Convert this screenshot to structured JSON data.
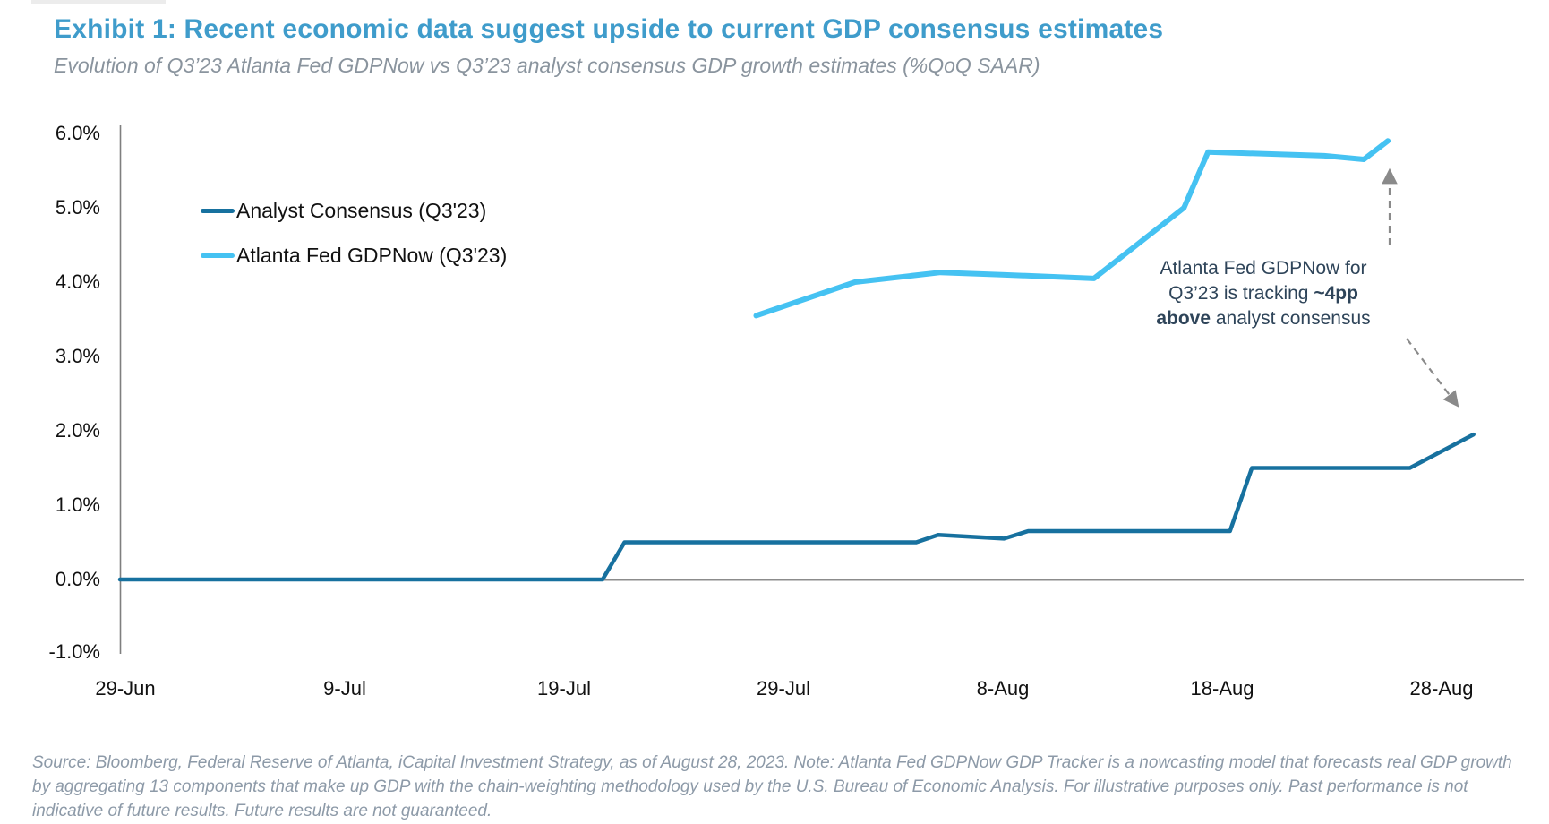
{
  "header": {
    "title": "Exhibit 1: Recent economic data suggest upside to current GDP consensus estimates",
    "title_color": "#3F9CCB",
    "subtitle": "Evolution of Q3’23 Atlanta Fed GDPNow vs Q3’23 analyst consensus GDP growth estimates (%QoQ SAAR)",
    "subtitle_color": "#8A949E"
  },
  "legend": {
    "items": [
      {
        "label": "Analyst Consensus (Q3'23)",
        "color": "#17719F"
      },
      {
        "label": "Atlanta Fed GDPNow (Q3'23)",
        "color": "#45C2F2"
      }
    ]
  },
  "annotation": {
    "line1": "Atlanta Fed GDPNow for",
    "line2_normal": "Q3’23 is tracking ",
    "line2_bold": "~4pp",
    "line3_bold": "above",
    "line3_normal": " analyst consensus",
    "color": "#2E4459",
    "arrow_color": "#8A8A8A"
  },
  "chart_data": {
    "type": "line",
    "title": "Exhibit 1: Recent economic data suggest upside to current GDP consensus estimates",
    "subtitle": "Evolution of Q3’23 Atlanta Fed GDPNow vs Q3’23 analyst consensus GDP growth estimates (%QoQ SAAR)",
    "unit": "%QoQ SAAR",
    "grid": "none",
    "legend_position": "inside-top-left",
    "x_axis": {
      "tick_labels": [
        "29-Jun",
        "9-Jul",
        "19-Jul",
        "29-Jul",
        "8-Aug",
        "18-Aug",
        "28-Aug"
      ],
      "tick_days": [
        0,
        10,
        20,
        30,
        40,
        50,
        60
      ]
    },
    "y_axis": {
      "tick_labels": [
        "6.0%",
        "5.0%",
        "4.0%",
        "3.0%",
        "2.0%",
        "1.0%",
        "0.0%",
        "-1.0%"
      ],
      "tick_values": [
        6.0,
        5.0,
        4.0,
        3.0,
        2.0,
        1.0,
        0.0,
        -1.0
      ],
      "range": [
        -1.0,
        6.2
      ],
      "format": "percent"
    },
    "series": [
      {
        "name": "Analyst Consensus (Q3'23)",
        "color": "#17719F",
        "points": [
          {
            "date": "29-Jun",
            "day": 0,
            "value": 0.0
          },
          {
            "date": "21-Jul",
            "day": 22,
            "value": 0.0
          },
          {
            "date": "22-Jul",
            "day": 23,
            "value": 0.5
          },
          {
            "date": "4-Aug",
            "day": 36.3,
            "value": 0.5
          },
          {
            "date": "5-Aug",
            "day": 37.3,
            "value": 0.6
          },
          {
            "date": "8-Aug",
            "day": 40.3,
            "value": 0.55
          },
          {
            "date": "9-Aug",
            "day": 41.4,
            "value": 0.65
          },
          {
            "date": "18-Aug",
            "day": 50.6,
            "value": 0.65
          },
          {
            "date": "19-Aug",
            "day": 51.6,
            "value": 1.5
          },
          {
            "date": "26-Aug",
            "day": 58.8,
            "value": 1.5
          },
          {
            "date": "28-Aug",
            "day": 61.7,
            "value": 1.95
          }
        ]
      },
      {
        "name": "Atlanta Fed GDPNow (Q3'23)",
        "color": "#45C2F2",
        "points": [
          {
            "date": "28-Jul",
            "day": 29,
            "value": 3.55
          },
          {
            "date": "1-Aug",
            "day": 33.5,
            "value": 4.0
          },
          {
            "date": "5-Aug",
            "day": 37.4,
            "value": 4.13
          },
          {
            "date": "8-Aug",
            "day": 40.2,
            "value": 4.1
          },
          {
            "date": "12-Aug",
            "day": 44.4,
            "value": 4.05
          },
          {
            "date": "16-Aug",
            "day": 48.5,
            "value": 5.0
          },
          {
            "date": "17-Aug",
            "day": 49.6,
            "value": 5.75
          },
          {
            "date": "23-Aug",
            "day": 54.9,
            "value": 5.7
          },
          {
            "date": "25-Aug",
            "day": 56.7,
            "value": 5.65
          },
          {
            "date": "26-Aug",
            "day": 57.8,
            "value": 5.9
          }
        ]
      }
    ]
  },
  "footer": {
    "source_note": "Source: Bloomberg, Federal Reserve of Atlanta, iCapital Investment Strategy, as of August 28, 2023. Note: Atlanta Fed GDPNow GDP Tracker is a nowcasting model that forecasts real GDP growth by aggregating 13 components that make up GDP with the chain-weighting methodology used by the U.S. Bureau of Economic Analysis. For illustrative purposes only. Past performance is not indicative of future results. Future results are not guaranteed.",
    "color": "#8D9AA8"
  }
}
